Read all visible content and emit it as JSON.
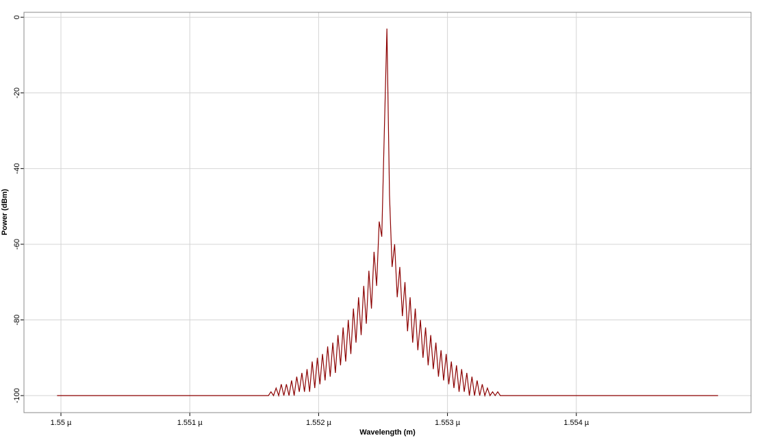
{
  "chart_data": {
    "type": "line",
    "xlabel": "Wavelength (m)",
    "ylabel": "Power (dBm)",
    "xlim": [
      1.549713e-06,
      1.555356e-06
    ],
    "ylim": [
      -104.5,
      1.3
    ],
    "xticks": [
      {
        "value": 1.55e-06,
        "label": "1.55 µ"
      },
      {
        "value": 1.551e-06,
        "label": "1.551 µ"
      },
      {
        "value": 1.552e-06,
        "label": "1.552 µ"
      },
      {
        "value": 1.553e-06,
        "label": "1.553 µ"
      },
      {
        "value": 1.554e-06,
        "label": "1.554 µ"
      }
    ],
    "yticks": [
      0,
      -20,
      -40,
      -60,
      -80,
      -100
    ],
    "grid": true,
    "color": "#8b0000",
    "x": [
      1.54997e-06,
      1.55161e-06,
      1.55163e-06,
      1.55165e-06,
      1.55167e-06,
      1.55169e-06,
      1.55171e-06,
      1.55173e-06,
      1.55175e-06,
      1.55177e-06,
      1.55179e-06,
      1.55181e-06,
      1.55183e-06,
      1.55185e-06,
      1.55187e-06,
      1.55189e-06,
      1.55191e-06,
      1.55193e-06,
      1.55195e-06,
      1.55197e-06,
      1.55199e-06,
      1.55201e-06,
      1.55203e-06,
      1.55205e-06,
      1.55207e-06,
      1.55209e-06,
      1.55211e-06,
      1.55213e-06,
      1.55215e-06,
      1.55217e-06,
      1.55219e-06,
      1.55221e-06,
      1.55223e-06,
      1.55225e-06,
      1.55227e-06,
      1.55229e-06,
      1.55231e-06,
      1.55233e-06,
      1.55235e-06,
      1.55237e-06,
      1.55239e-06,
      1.55241e-06,
      1.55243e-06,
      1.55245e-06,
      1.55247e-06,
      1.55249e-06,
      1.55251e-06,
      1.55253e-06,
      1.55255e-06,
      1.55257e-06,
      1.55259e-06,
      1.55261e-06,
      1.55263e-06,
      1.55265e-06,
      1.55267e-06,
      1.55269e-06,
      1.55271e-06,
      1.55273e-06,
      1.55275e-06,
      1.55277e-06,
      1.55279e-06,
      1.55281e-06,
      1.55283e-06,
      1.55285e-06,
      1.55287e-06,
      1.55289e-06,
      1.55291e-06,
      1.55293e-06,
      1.55295e-06,
      1.55297e-06,
      1.55299e-06,
      1.55301e-06,
      1.55303e-06,
      1.55305e-06,
      1.55307e-06,
      1.55309e-06,
      1.55311e-06,
      1.55313e-06,
      1.55315e-06,
      1.55317e-06,
      1.55319e-06,
      1.55321e-06,
      1.55323e-06,
      1.55325e-06,
      1.55327e-06,
      1.55329e-06,
      1.55331e-06,
      1.55333e-06,
      1.55335e-06,
      1.55337e-06,
      1.55339e-06,
      1.55341e-06,
      1.55343e-06,
      1.5551e-06
    ],
    "values": [
      -100,
      -100,
      -99,
      -100,
      -98,
      -100,
      -97,
      -100,
      -97,
      -100,
      -96,
      -100,
      -95,
      -99,
      -94,
      -99,
      -93,
      -99,
      -91,
      -98,
      -90,
      -97,
      -89,
      -96,
      -87,
      -95,
      -86,
      -94,
      -84,
      -92,
      -82,
      -91,
      -80,
      -89,
      -77,
      -86,
      -74,
      -84,
      -71,
      -81,
      -67,
      -77,
      -62,
      -71,
      -54,
      -58,
      -30,
      -3,
      -47,
      -66,
      -60,
      -74,
      -66,
      -79,
      -70,
      -83,
      -74,
      -86,
      -77,
      -88,
      -80,
      -90,
      -82,
      -92,
      -84,
      -93,
      -86,
      -95,
      -88,
      -96,
      -89,
      -97,
      -91,
      -98,
      -92,
      -99,
      -93,
      -99,
      -94,
      -100,
      -95,
      -100,
      -96,
      -100,
      -97,
      -100,
      -98,
      -100,
      -99,
      -100,
      -99,
      -100,
      -100,
      -100
    ]
  }
}
